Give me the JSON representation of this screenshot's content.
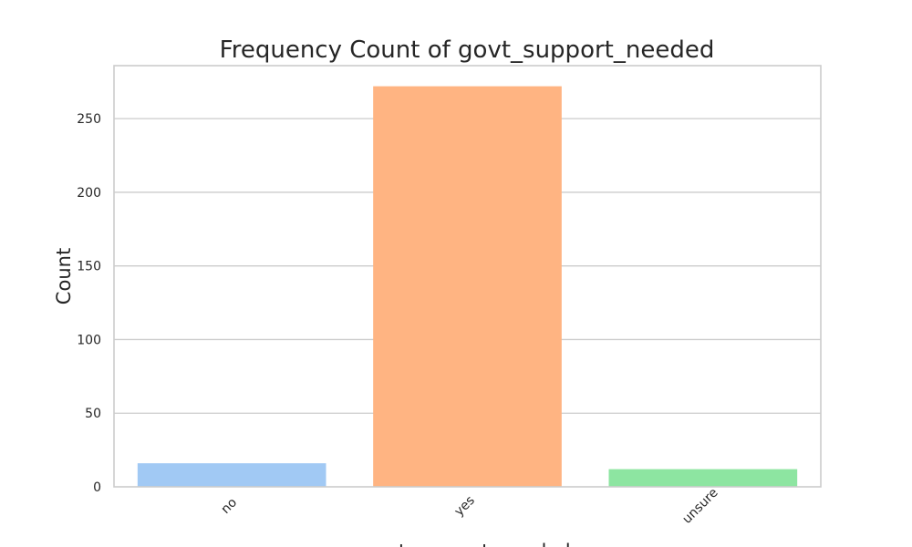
{
  "chart_data": {
    "type": "bar",
    "title": "Frequency Count of govt_support_needed",
    "xlabel": "govt_support_needed",
    "ylabel": "Count",
    "categories": [
      "no",
      "yes",
      "unsure"
    ],
    "values": [
      16,
      272,
      12
    ],
    "colors": [
      "#a1c9f4",
      "#ffb482",
      "#8de5a1"
    ],
    "ylim": [
      0,
      286
    ],
    "yticks": [
      0,
      50,
      100,
      150,
      200,
      250
    ],
    "grid": true,
    "legend": "none"
  }
}
